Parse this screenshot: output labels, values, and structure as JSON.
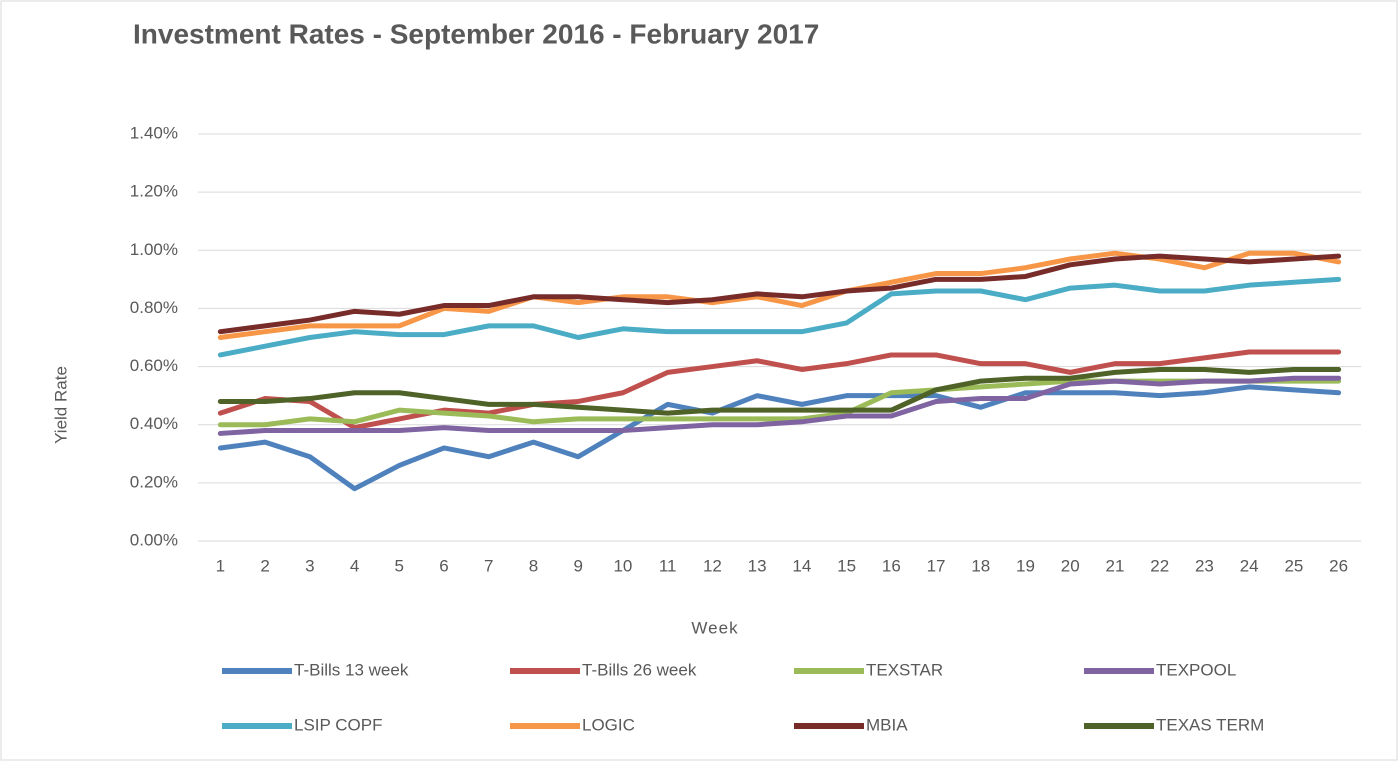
{
  "chart_data": {
    "type": "line",
    "title": "Investment Rates - September 2016 - February 2017",
    "x_label": "Week",
    "y_label": "Yield Rate",
    "categories": [
      1,
      2,
      3,
      4,
      5,
      6,
      7,
      8,
      9,
      10,
      11,
      12,
      13,
      14,
      15,
      16,
      17,
      18,
      19,
      20,
      21,
      22,
      23,
      24,
      25,
      26
    ],
    "ylim": [
      0,
      1.4
    ],
    "yticks": [
      {
        "value": 0,
        "label": "0.00%"
      },
      {
        "value": 0.2,
        "label": "0.20%"
      },
      {
        "value": 0.4,
        "label": "0.40%"
      },
      {
        "value": 0.6,
        "label": "0.60%"
      },
      {
        "value": 0.8,
        "label": "0.80%"
      },
      {
        "value": 1.0,
        "label": "1.00%"
      },
      {
        "value": 1.2,
        "label": "1.20%"
      },
      {
        "value": 1.4,
        "label": "1.40%"
      }
    ],
    "grid": true,
    "legend": "bottom",
    "series": [
      {
        "name": "T-Bills 13 week",
        "color": "#4f81bd",
        "values": [
          0.32,
          0.34,
          0.29,
          0.18,
          0.26,
          0.32,
          0.29,
          0.34,
          0.29,
          0.38,
          0.47,
          0.44,
          0.5,
          0.47,
          0.5,
          0.5,
          0.5,
          0.46,
          0.51,
          0.51,
          0.51,
          0.5,
          0.51,
          0.53,
          0.52,
          0.51
        ]
      },
      {
        "name": "T-Bills 26 week",
        "color": "#c0504d",
        "values": [
          0.44,
          0.49,
          0.48,
          0.39,
          0.42,
          0.45,
          0.44,
          0.47,
          0.48,
          0.51,
          0.58,
          0.6,
          0.62,
          0.59,
          0.61,
          0.64,
          0.64,
          0.61,
          0.61,
          0.58,
          0.61,
          0.61,
          0.63,
          0.65,
          0.65,
          0.65
        ]
      },
      {
        "name": "TEXSTAR",
        "color": "#9bbb59",
        "values": [
          0.4,
          0.4,
          0.42,
          0.41,
          0.45,
          0.44,
          0.43,
          0.41,
          0.42,
          0.42,
          0.42,
          0.42,
          0.42,
          0.42,
          0.44,
          0.51,
          0.52,
          0.53,
          0.54,
          0.55,
          0.55,
          0.55,
          0.55,
          0.55,
          0.55,
          0.55
        ]
      },
      {
        "name": "TEXPOOL",
        "color": "#8064a2",
        "values": [
          0.37,
          0.38,
          0.38,
          0.38,
          0.38,
          0.39,
          0.38,
          0.38,
          0.38,
          0.38,
          0.39,
          0.4,
          0.4,
          0.41,
          0.43,
          0.43,
          0.48,
          0.49,
          0.49,
          0.54,
          0.55,
          0.54,
          0.55,
          0.55,
          0.56,
          0.56
        ]
      },
      {
        "name": "LSIP COPF",
        "color": "#4bacc6",
        "values": [
          0.64,
          0.67,
          0.7,
          0.72,
          0.71,
          0.71,
          0.74,
          0.74,
          0.7,
          0.73,
          0.72,
          0.72,
          0.72,
          0.72,
          0.75,
          0.85,
          0.86,
          0.86,
          0.83,
          0.87,
          0.88,
          0.86,
          0.86,
          0.88,
          0.89,
          0.9
        ]
      },
      {
        "name": "LOGIC",
        "color": "#f79646",
        "values": [
          0.7,
          0.72,
          0.74,
          0.74,
          0.74,
          0.8,
          0.79,
          0.84,
          0.82,
          0.84,
          0.84,
          0.82,
          0.84,
          0.81,
          0.86,
          0.89,
          0.92,
          0.92,
          0.94,
          0.97,
          0.99,
          0.97,
          0.94,
          0.99,
          0.99,
          0.96
        ]
      },
      {
        "name": "MBIA",
        "color": "#772c2a",
        "values": [
          0.72,
          0.74,
          0.76,
          0.79,
          0.78,
          0.81,
          0.81,
          0.84,
          0.84,
          0.83,
          0.82,
          0.83,
          0.85,
          0.84,
          0.86,
          0.87,
          0.9,
          0.9,
          0.91,
          0.95,
          0.97,
          0.98,
          0.97,
          0.96,
          0.97,
          0.98
        ]
      },
      {
        "name": "TEXAS TERM",
        "color": "#4f6228",
        "values": [
          0.48,
          0.48,
          0.49,
          0.51,
          0.51,
          0.49,
          0.47,
          0.47,
          0.46,
          0.45,
          0.44,
          0.45,
          0.45,
          0.45,
          0.45,
          0.45,
          0.52,
          0.55,
          0.56,
          0.56,
          0.58,
          0.59,
          0.59,
          0.58,
          0.59,
          0.59
        ]
      }
    ]
  }
}
